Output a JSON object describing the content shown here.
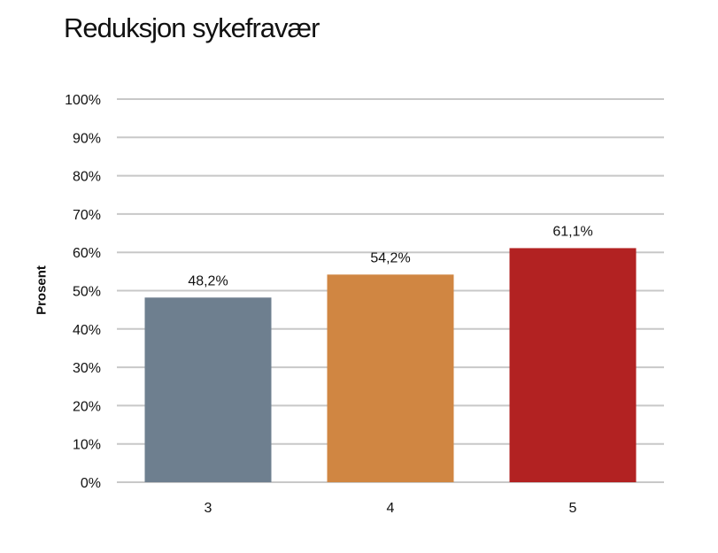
{
  "chart_data": {
    "type": "bar",
    "title": "Reduksjon sykefravær",
    "xlabel": "",
    "ylabel": "Prosent",
    "categories": [
      "3",
      "4",
      "5"
    ],
    "values": [
      48.2,
      54.2,
      61.1
    ],
    "data_labels": [
      "48,2%",
      "54,2%",
      "61,1%"
    ],
    "colors": [
      "#6e7f8f",
      "#d08642",
      "#b22222"
    ],
    "ylim": [
      0,
      100
    ],
    "yticks": [
      0,
      10,
      20,
      30,
      40,
      50,
      60,
      70,
      80,
      90,
      100
    ],
    "ytick_labels": [
      "0%",
      "10%",
      "20%",
      "30%",
      "40%",
      "50%",
      "60%",
      "70%",
      "80%",
      "90%",
      "100%"
    ],
    "grid": true,
    "legend": "none"
  }
}
